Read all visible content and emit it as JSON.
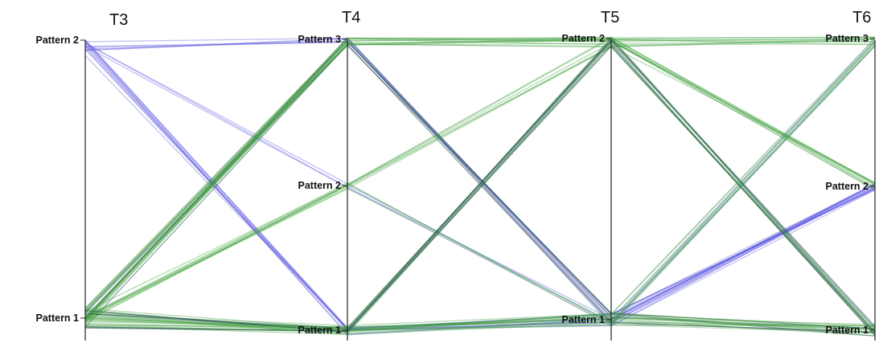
{
  "chart_data": {
    "type": "parallel-coordinates",
    "axes": [
      {
        "name": "T3",
        "ticks": [
          "Pattern 1",
          "Pattern 2"
        ]
      },
      {
        "name": "T4",
        "ticks": [
          "Pattern 1",
          "Pattern 2",
          "Pattern 3"
        ]
      },
      {
        "name": "T5",
        "ticks": [
          "Pattern 1",
          "Pattern 2"
        ]
      },
      {
        "name": "T6",
        "ticks": [
          "Pattern 1",
          "Pattern 2",
          "Pattern 3"
        ]
      }
    ],
    "series_colors": {
      "blue": "#5b57e0",
      "green": "#3d9e3a",
      "dark": "#2f5a5a"
    },
    "line_groups": [
      {
        "color": "blue",
        "count": 6,
        "path": [
          "Pattern 2",
          "Pattern 3",
          "Pattern 1",
          "Pattern 2"
        ]
      },
      {
        "color": "blue",
        "count": 10,
        "path": [
          "Pattern 2",
          "Pattern 1",
          "Pattern 1",
          "Pattern 2"
        ]
      },
      {
        "color": "blue",
        "count": 3,
        "path": [
          "Pattern 2",
          "Pattern 2",
          "Pattern 1",
          "Pattern 3"
        ]
      },
      {
        "color": "dark",
        "count": 5,
        "path": [
          "Pattern 1",
          "Pattern 3",
          "Pattern 1",
          "Pattern 1"
        ]
      },
      {
        "color": "green",
        "count": 10,
        "path": [
          "Pattern 1",
          "Pattern 3",
          "Pattern 2",
          "Pattern 3"
        ]
      },
      {
        "color": "green",
        "count": 4,
        "path": [
          "Pattern 1",
          "Pattern 3",
          "Pattern 2",
          "Pattern 2"
        ]
      },
      {
        "color": "green",
        "count": 6,
        "path": [
          "Pattern 1",
          "Pattern 2",
          "Pattern 2",
          "Pattern 1"
        ]
      },
      {
        "color": "green",
        "count": 3,
        "path": [
          "Pattern 1",
          "Pattern 2",
          "Pattern 1",
          "Pattern 3"
        ]
      },
      {
        "color": "green",
        "count": 12,
        "path": [
          "Pattern 1",
          "Pattern 1",
          "Pattern 1",
          "Pattern 1"
        ]
      },
      {
        "color": "green",
        "count": 6,
        "path": [
          "Pattern 1",
          "Pattern 1",
          "Pattern 2",
          "Pattern 2"
        ]
      },
      {
        "color": "dark",
        "count": 5,
        "path": [
          "Pattern 1",
          "Pattern 1",
          "Pattern 2",
          "Pattern 1"
        ]
      },
      {
        "color": "green",
        "count": 4,
        "path": [
          "Pattern 1",
          "Pattern 1",
          "Pattern 1",
          "Pattern 3"
        ]
      }
    ]
  }
}
